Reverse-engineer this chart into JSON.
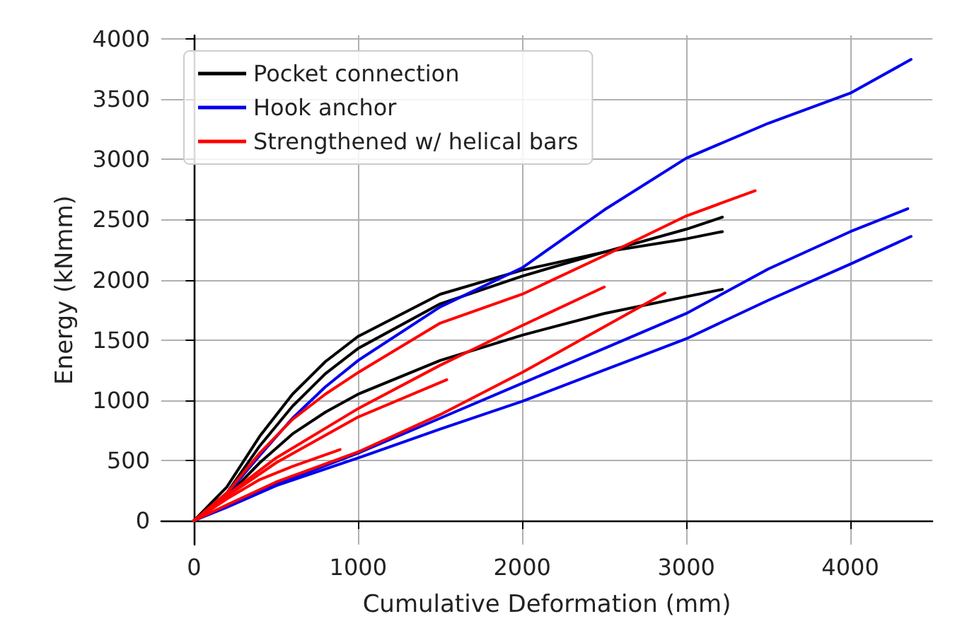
{
  "chart_data": {
    "type": "line",
    "xlabel": "Cumulative Deformation (mm)",
    "ylabel": "Energy (kNmm)",
    "xlim": [
      -200,
      4500
    ],
    "ylim": [
      -200,
      4030
    ],
    "xticks": [
      0,
      1000,
      2000,
      3000,
      4000
    ],
    "yticks": [
      0,
      500,
      1000,
      1500,
      2000,
      2500,
      3000,
      3500,
      4000
    ],
    "grid": true,
    "legend": "top left",
    "marker": "none",
    "line_style": "solid",
    "series": [
      {
        "name": "Pocket connection",
        "color": "#000000",
        "x": [
          0,
          200,
          400,
          600,
          800,
          1000,
          1500,
          2000,
          2500,
          3000,
          3220
        ],
        "values": [
          0,
          280,
          700,
          1050,
          1320,
          1530,
          1880,
          2080,
          2230,
          2340,
          2400
        ]
      },
      {
        "color": "#000000",
        "x": [
          0,
          200,
          400,
          600,
          800,
          1000,
          1500,
          2000,
          2500,
          3000,
          3220
        ],
        "values": [
          0,
          230,
          620,
          950,
          1220,
          1430,
          1800,
          2030,
          2230,
          2420,
          2520
        ]
      },
      {
        "color": "#000000",
        "x": [
          0,
          200,
          400,
          600,
          800,
          1000,
          1500,
          2000,
          2500,
          3000,
          3220
        ],
        "values": [
          0,
          200,
          480,
          720,
          900,
          1050,
          1330,
          1540,
          1720,
          1860,
          1920
        ]
      },
      {
        "name": "Hook anchor",
        "color": "#0000ee",
        "x": [
          0,
          200,
          400,
          600,
          800,
          1000,
          1500,
          2000,
          2500,
          3000,
          3500,
          4000,
          4370
        ],
        "values": [
          0,
          220,
          540,
          850,
          1110,
          1330,
          1775,
          2100,
          2580,
          3010,
          3300,
          3550,
          3830
        ]
      },
      {
        "color": "#0000ee",
        "x": [
          0,
          200,
          500,
          1000,
          1500,
          2000,
          2500,
          3000,
          3500,
          4000,
          4350
        ],
        "values": [
          0,
          120,
          300,
          560,
          850,
          1140,
          1430,
          1720,
          2090,
          2400,
          2590
        ]
      },
      {
        "color": "#0000ee",
        "x": [
          0,
          200,
          500,
          1000,
          1500,
          2000,
          2500,
          3000,
          3500,
          4000,
          4370
        ],
        "values": [
          0,
          110,
          290,
          520,
          760,
          990,
          1250,
          1510,
          1830,
          2130,
          2360
        ]
      },
      {
        "name": "Strengthened w/ helical bars",
        "color": "#ff0000",
        "x": [
          0,
          200,
          400,
          600,
          800,
          1000,
          1500,
          2000,
          2500,
          3000,
          3420
        ],
        "values": [
          0,
          230,
          560,
          840,
          1050,
          1230,
          1640,
          1880,
          2200,
          2530,
          2740
        ]
      },
      {
        "color": "#ff0000",
        "x": [
          0,
          200,
          400,
          600,
          890
        ],
        "values": [
          0,
          180,
          340,
          450,
          590
        ]
      },
      {
        "color": "#ff0000",
        "x": [
          0,
          200,
          500,
          1000,
          1540
        ],
        "values": [
          0,
          200,
          480,
          860,
          1170
        ]
      },
      {
        "color": "#ff0000",
        "x": [
          0,
          200,
          500,
          1000,
          1500,
          2000,
          2500
        ],
        "values": [
          0,
          210,
          520,
          930,
          1290,
          1620,
          1940
        ]
      },
      {
        "color": "#ff0000",
        "x": [
          0,
          200,
          500,
          1000,
          1500,
          2000,
          2500,
          2870
        ],
        "values": [
          0,
          130,
          320,
          570,
          880,
          1230,
          1610,
          1890
        ]
      }
    ]
  }
}
